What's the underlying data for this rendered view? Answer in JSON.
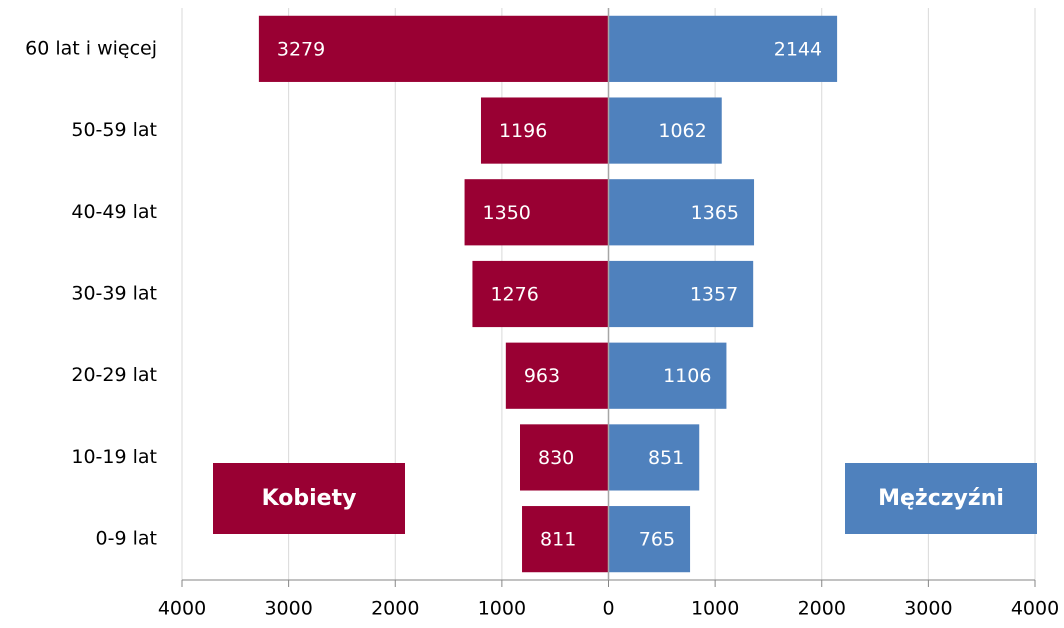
{
  "chart_data": {
    "type": "pyramid",
    "categories": [
      "60 lat i więcej",
      "50-59 lat",
      "40-49 lat",
      "30-39 lat",
      "20-29 lat",
      "10-19 lat",
      "0-9 lat"
    ],
    "series": [
      {
        "name": "Kobiety",
        "color": "#990033",
        "values": [
          -3279,
          -1196,
          -1350,
          -1276,
          -963,
          -830,
          -811
        ],
        "value_labels": [
          "3279",
          "1196",
          "1350",
          "1276",
          "963",
          "830",
          "811"
        ]
      },
      {
        "name": "Mężczyźni",
        "color": "#4f81bd",
        "values": [
          2144,
          1062,
          1365,
          1357,
          1106,
          851,
          765
        ]
      }
    ],
    "xlim": [
      -4000,
      4000
    ],
    "xticks": [
      {
        "value": -4000,
        "label": "4000"
      },
      {
        "value": -3000,
        "label": "3000"
      },
      {
        "value": -2000,
        "label": "2000"
      },
      {
        "value": -1000,
        "label": "1000"
      },
      0,
      1000,
      2000,
      3000,
      4000
    ],
    "grid": true
  }
}
